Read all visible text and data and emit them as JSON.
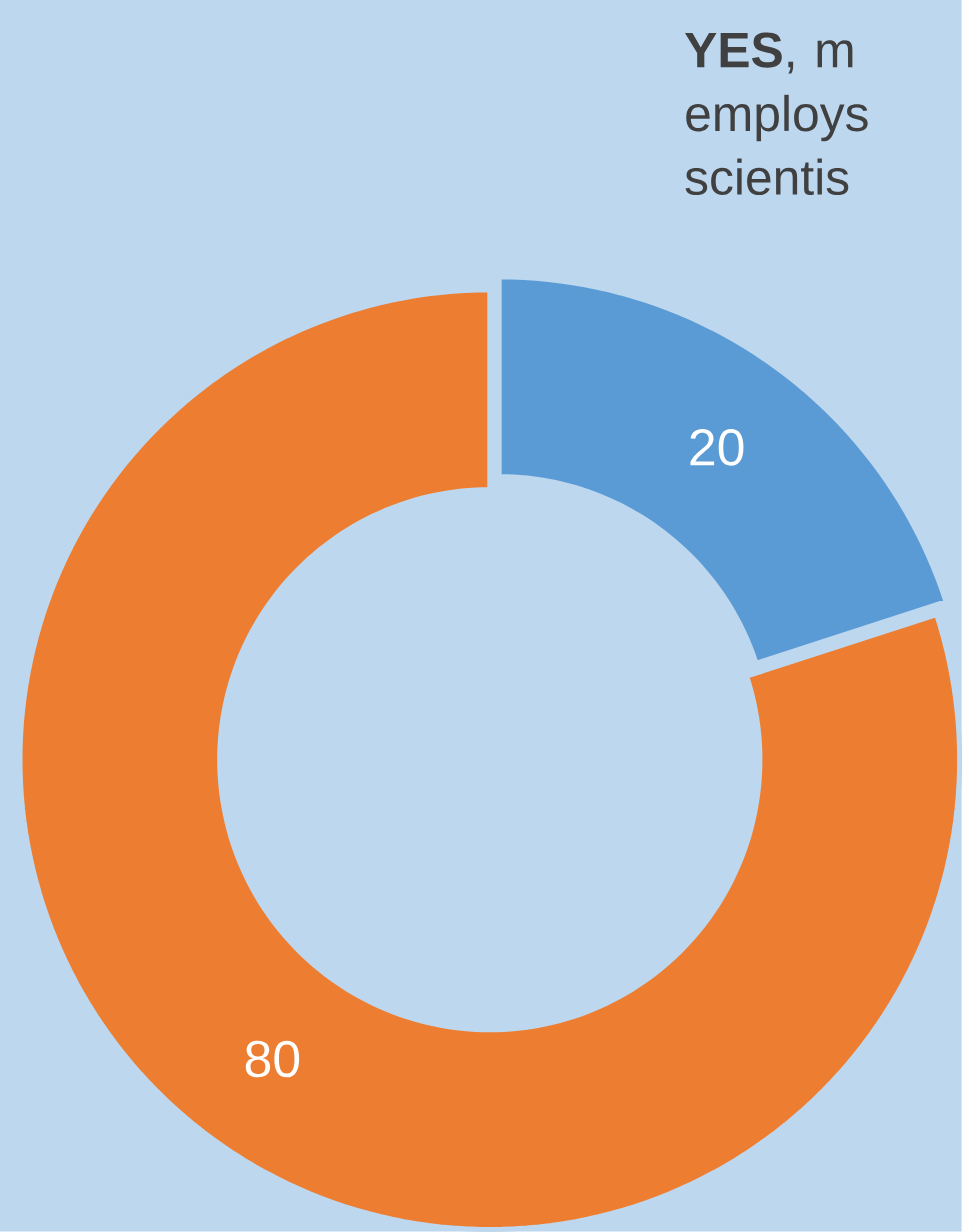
{
  "chart_data": {
    "type": "donut",
    "categories": [
      null,
      null
    ],
    "values": [
      20,
      80
    ],
    "colors": [
      "#5b9bd5",
      "#ed7d31"
    ],
    "data_labels": true,
    "annotations": [
      "**YES**, m employs scientis"
    ]
  }
}
